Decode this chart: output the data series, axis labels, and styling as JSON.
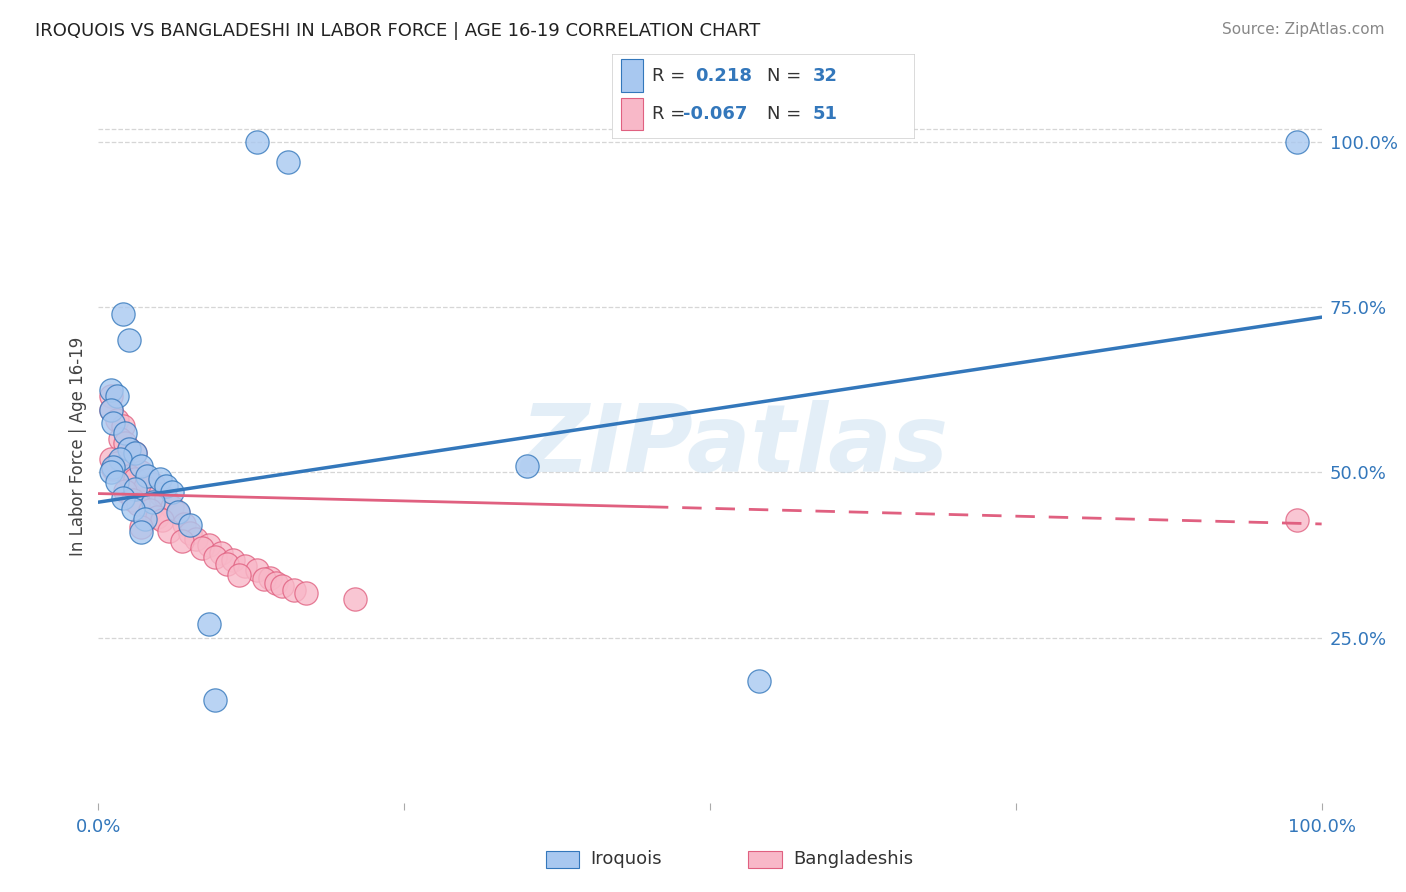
{
  "title": "IROQUOIS VS BANGLADESHI IN LABOR FORCE | AGE 16-19 CORRELATION CHART",
  "source": "Source: ZipAtlas.com",
  "ylabel": "In Labor Force | Age 16-19",
  "ylabel_right_ticks": [
    "100.0%",
    "75.0%",
    "50.0%",
    "25.0%"
  ],
  "ylabel_right_vals": [
    1.0,
    0.75,
    0.5,
    0.25
  ],
  "watermark": "ZIPatlas",
  "iroquois_color": "#a8c8f0",
  "bangladeshi_color": "#f8b8c8",
  "line_iroquois_color": "#3377bb",
  "line_bangladeshi_color": "#e06080",
  "iroquois_points": [
    [
      0.13,
      1.0
    ],
    [
      0.155,
      0.97
    ],
    [
      0.02,
      0.74
    ],
    [
      0.025,
      0.7
    ],
    [
      0.01,
      0.625
    ],
    [
      0.015,
      0.615
    ],
    [
      0.01,
      0.595
    ],
    [
      0.012,
      0.575
    ],
    [
      0.022,
      0.56
    ],
    [
      0.025,
      0.535
    ],
    [
      0.03,
      0.53
    ],
    [
      0.018,
      0.52
    ],
    [
      0.035,
      0.51
    ],
    [
      0.012,
      0.508
    ],
    [
      0.01,
      0.5
    ],
    [
      0.04,
      0.495
    ],
    [
      0.05,
      0.49
    ],
    [
      0.015,
      0.485
    ],
    [
      0.055,
      0.48
    ],
    [
      0.03,
      0.475
    ],
    [
      0.06,
      0.47
    ],
    [
      0.02,
      0.462
    ],
    [
      0.045,
      0.455
    ],
    [
      0.028,
      0.445
    ],
    [
      0.065,
      0.44
    ],
    [
      0.038,
      0.43
    ],
    [
      0.075,
      0.42
    ],
    [
      0.035,
      0.41
    ],
    [
      0.35,
      0.51
    ],
    [
      0.09,
      0.27
    ],
    [
      0.095,
      0.155
    ],
    [
      0.98,
      1.0
    ],
    [
      0.54,
      0.185
    ]
  ],
  "bangladeshi_points": [
    [
      0.01,
      0.615
    ],
    [
      0.01,
      0.595
    ],
    [
      0.015,
      0.58
    ],
    [
      0.02,
      0.57
    ],
    [
      0.018,
      0.55
    ],
    [
      0.022,
      0.545
    ],
    [
      0.025,
      0.535
    ],
    [
      0.03,
      0.53
    ],
    [
      0.01,
      0.52
    ],
    [
      0.015,
      0.515
    ],
    [
      0.02,
      0.51
    ],
    [
      0.012,
      0.505
    ],
    [
      0.035,
      0.5
    ],
    [
      0.025,
      0.495
    ],
    [
      0.03,
      0.49
    ],
    [
      0.04,
      0.488
    ],
    [
      0.045,
      0.483
    ],
    [
      0.038,
      0.478
    ],
    [
      0.022,
      0.472
    ],
    [
      0.05,
      0.468
    ],
    [
      0.055,
      0.462
    ],
    [
      0.028,
      0.458
    ],
    [
      0.032,
      0.452
    ],
    [
      0.06,
      0.448
    ],
    [
      0.042,
      0.443
    ],
    [
      0.065,
      0.438
    ],
    [
      0.048,
      0.432
    ],
    [
      0.052,
      0.428
    ],
    [
      0.07,
      0.422
    ],
    [
      0.035,
      0.418
    ],
    [
      0.058,
      0.412
    ],
    [
      0.075,
      0.408
    ],
    [
      0.08,
      0.4
    ],
    [
      0.068,
      0.396
    ],
    [
      0.09,
      0.39
    ],
    [
      0.085,
      0.385
    ],
    [
      0.1,
      0.378
    ],
    [
      0.095,
      0.372
    ],
    [
      0.11,
      0.368
    ],
    [
      0.105,
      0.362
    ],
    [
      0.12,
      0.358
    ],
    [
      0.13,
      0.352
    ],
    [
      0.115,
      0.345
    ],
    [
      0.14,
      0.34
    ],
    [
      0.135,
      0.338
    ],
    [
      0.145,
      0.332
    ],
    [
      0.15,
      0.328
    ],
    [
      0.16,
      0.322
    ],
    [
      0.17,
      0.318
    ],
    [
      0.21,
      0.308
    ],
    [
      0.98,
      0.428
    ]
  ],
  "iroquois_line": [
    0.0,
    0.455,
    1.0,
    0.735
  ],
  "bangladeshi_line_solid": [
    0.0,
    0.468,
    0.45,
    0.448
  ],
  "bangladeshi_line_dash": [
    0.45,
    0.448,
    1.0,
    0.422
  ],
  "xlim": [
    0.0,
    1.0
  ],
  "ylim": [
    0.0,
    1.08
  ],
  "grid_color": "#cccccc",
  "bg_color": "#ffffff",
  "title_fontsize": 13,
  "source_fontsize": 11,
  "axis_label_fontsize": 12,
  "tick_fontsize": 13
}
